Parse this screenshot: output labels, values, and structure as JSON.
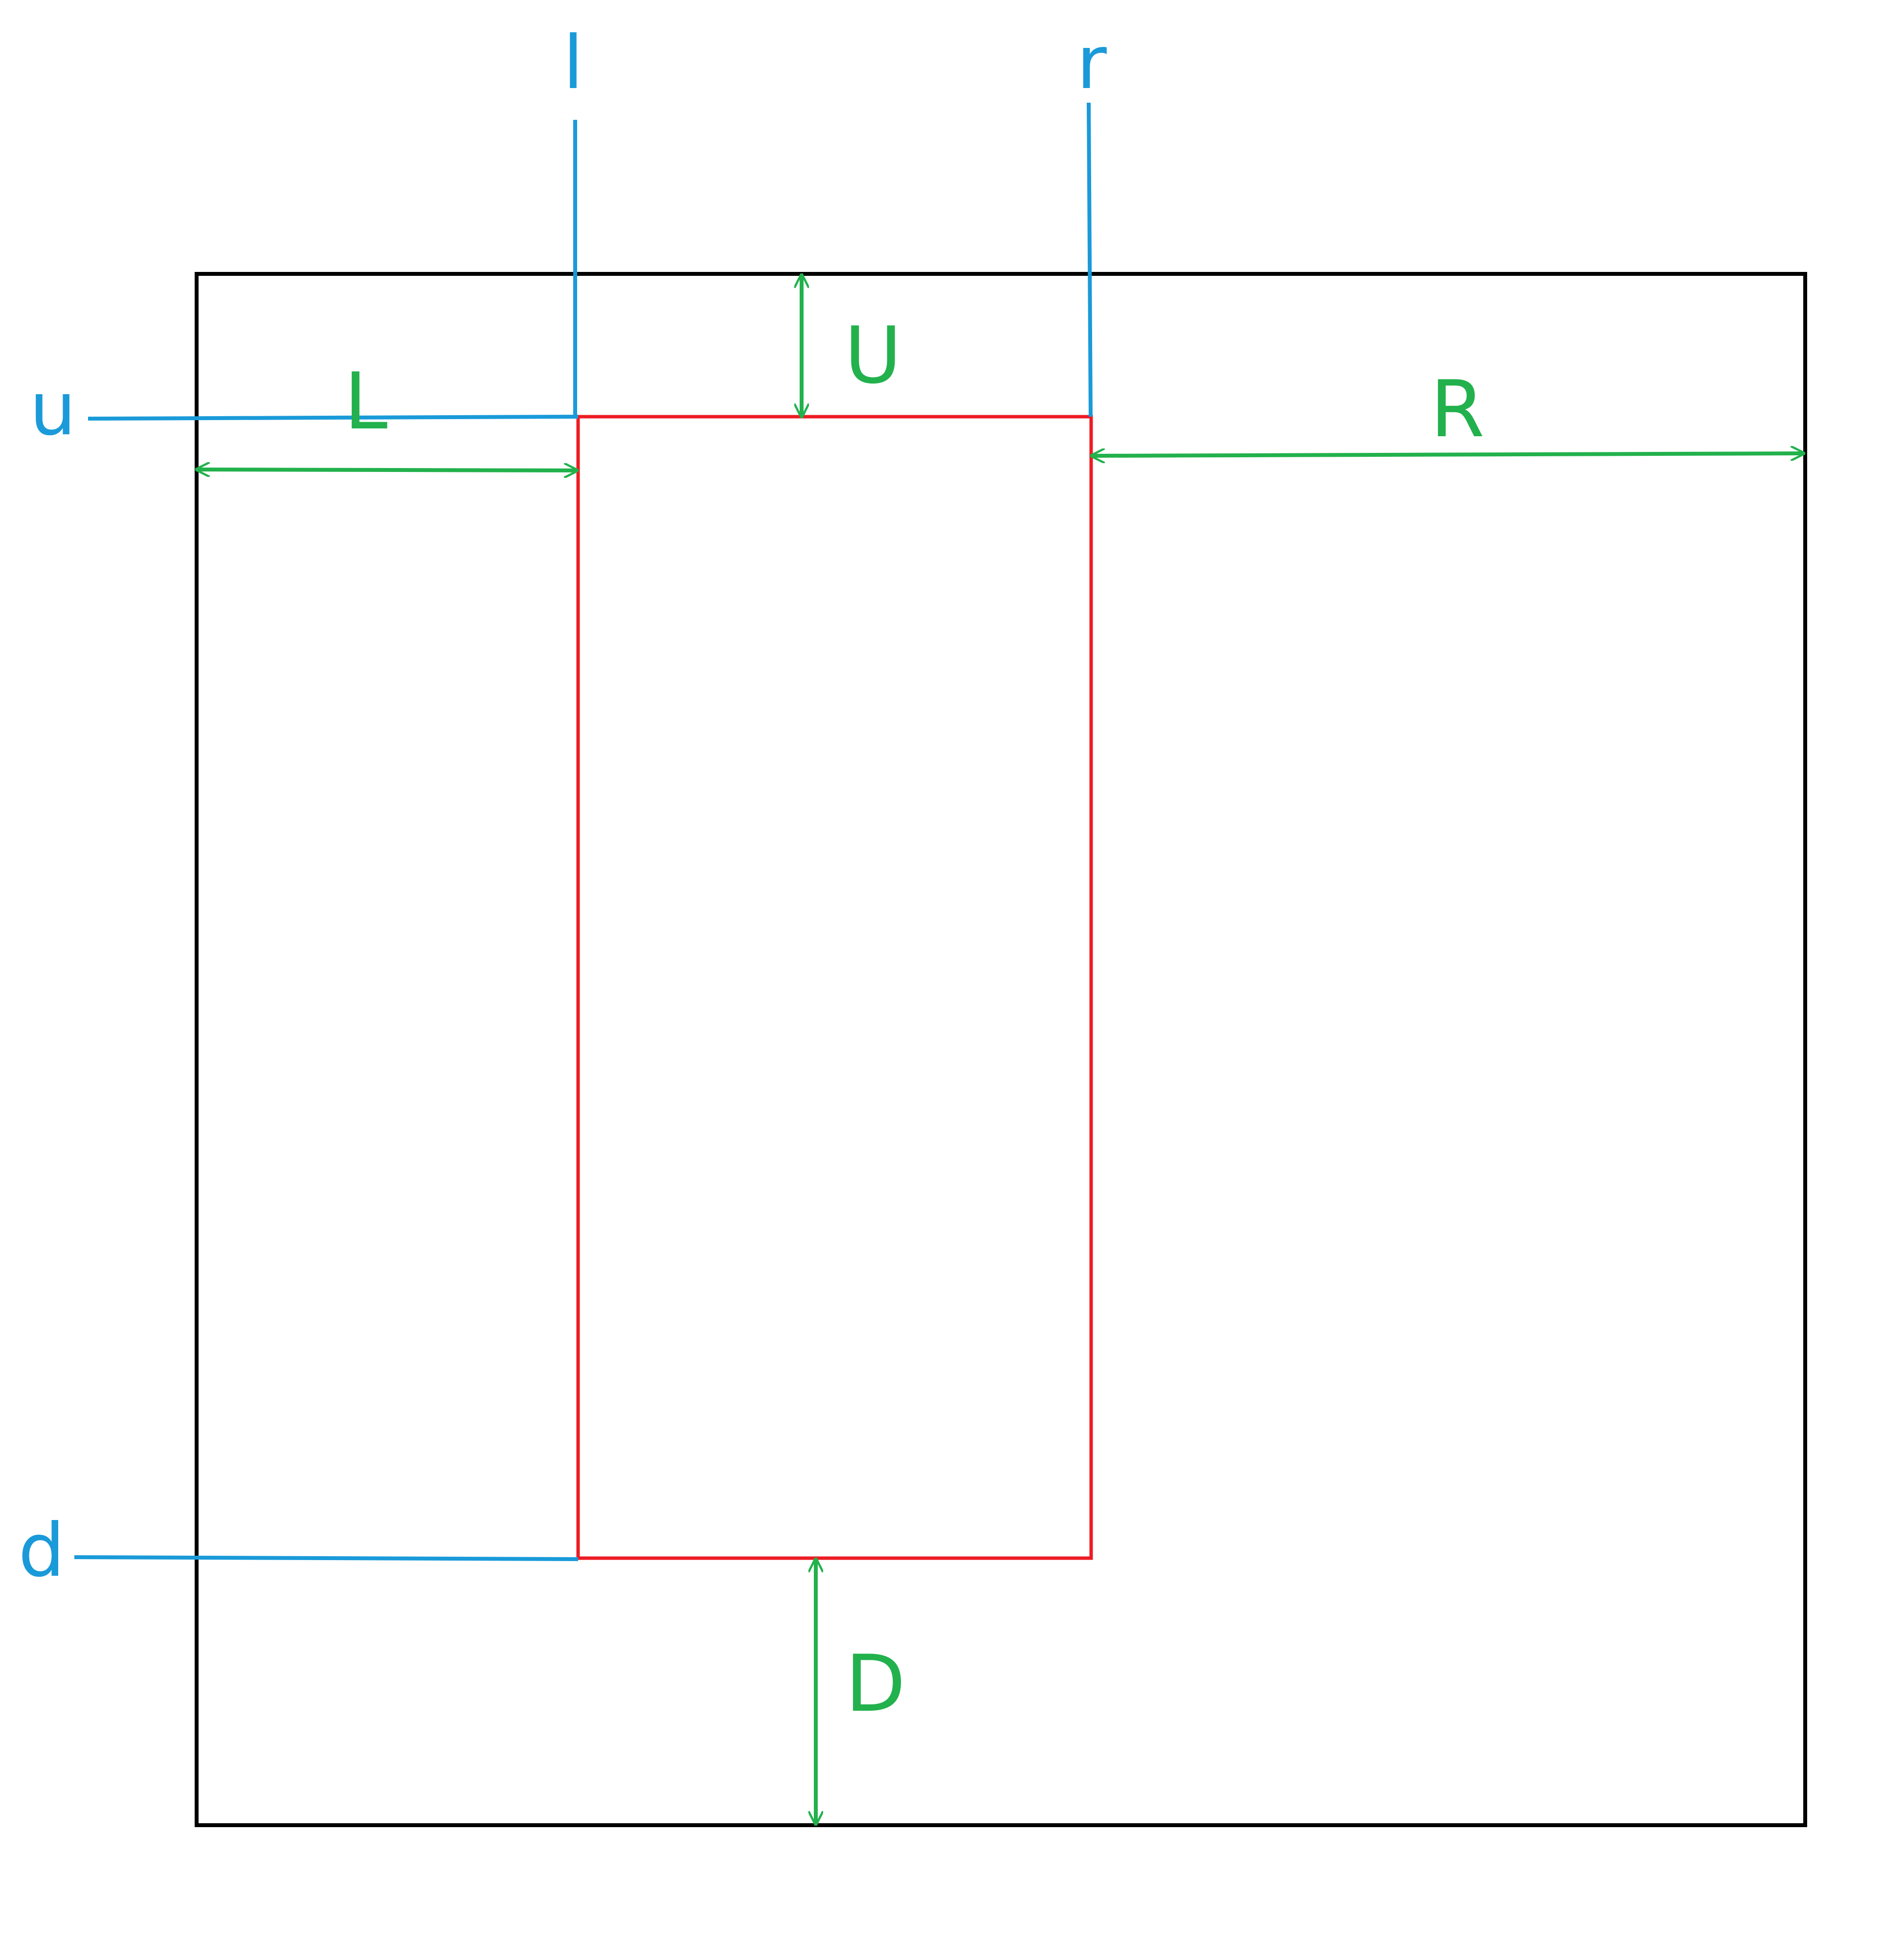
{
  "colors": {
    "outer_border": "#000000",
    "inner_rect": "#ED1C24",
    "guide_lines": "#1A9AD9",
    "dimensions": "#22B14C",
    "background": "#FFFFFF"
  },
  "guide_labels": {
    "left": "l",
    "right": "r",
    "up": "u",
    "down": "d"
  },
  "dimension_labels": {
    "left": "L",
    "right": "R",
    "up": "U",
    "down": "D"
  }
}
